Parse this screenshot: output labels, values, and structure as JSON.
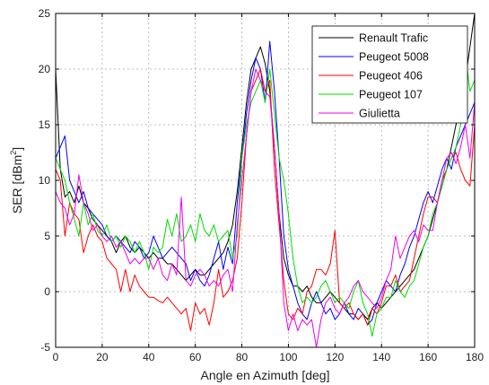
{
  "chart_data": {
    "type": "line",
    "title": "",
    "xlabel": "Angle en Azimuth [deg]",
    "ylabel_main": "SER [dBm",
    "ylabel_sup": "2",
    "ylabel_close": "]",
    "xlim": [
      0,
      180
    ],
    "ylim": [
      -5,
      25
    ],
    "xticks": [
      0,
      20,
      40,
      60,
      80,
      100,
      120,
      140,
      160,
      180
    ],
    "yticks": [
      -5,
      0,
      5,
      10,
      15,
      20,
      25
    ],
    "grid": true,
    "legend_position": "top-right",
    "series": [
      {
        "name": "Renault Trafic",
        "color": "#000000",
        "x": [
          0,
          2,
          4,
          6,
          8,
          10,
          12,
          14,
          16,
          18,
          20,
          22,
          24,
          26,
          28,
          30,
          32,
          34,
          36,
          38,
          40,
          42,
          44,
          46,
          48,
          50,
          52,
          54,
          56,
          58,
          60,
          62,
          64,
          66,
          68,
          70,
          72,
          74,
          76,
          78,
          80,
          82,
          84,
          86,
          88,
          90,
          92,
          94,
          96,
          98,
          100,
          102,
          104,
          106,
          108,
          110,
          112,
          114,
          116,
          118,
          120,
          122,
          124,
          126,
          128,
          130,
          132,
          134,
          136,
          138,
          140,
          142,
          144,
          146,
          148,
          150,
          152,
          154,
          156,
          158,
          160,
          162,
          164,
          166,
          168,
          170,
          172,
          174,
          176,
          178,
          180
        ],
        "values": [
          20,
          11,
          8.5,
          9,
          8,
          9.5,
          8,
          7.5,
          6.5,
          6,
          5.5,
          5,
          4.5,
          3.5,
          4.5,
          5,
          4,
          3.5,
          4,
          3.5,
          3,
          3.5,
          3,
          3,
          2.5,
          2.5,
          2,
          1.5,
          1,
          1.5,
          2,
          1.5,
          1.5,
          2,
          2.5,
          3,
          3.5,
          4.5,
          6,
          9,
          13,
          17,
          20,
          21,
          22,
          20.5,
          18,
          13,
          7,
          3,
          1.5,
          0.5,
          0.5,
          0,
          0.5,
          -0.5,
          -1,
          -1,
          -0.5,
          0,
          -0.5,
          -1,
          -1.5,
          -2,
          -2,
          -2.5,
          -2,
          -2.5,
          -1.5,
          -1,
          -1.5,
          -1,
          -0.5,
          0,
          0.5,
          1,
          1.5,
          2,
          3,
          4,
          5,
          6.5,
          8,
          9.5,
          11,
          13,
          15,
          16.5,
          19,
          22,
          25
        ]
      },
      {
        "name": "Peugeot 5008",
        "color": "#0000ff",
        "x": [
          0,
          2,
          4,
          6,
          8,
          10,
          12,
          14,
          16,
          18,
          20,
          22,
          24,
          26,
          28,
          30,
          32,
          34,
          36,
          38,
          40,
          42,
          44,
          46,
          48,
          50,
          52,
          54,
          56,
          58,
          60,
          62,
          64,
          66,
          68,
          70,
          72,
          74,
          76,
          78,
          80,
          82,
          84,
          86,
          88,
          90,
          92,
          94,
          96,
          98,
          100,
          102,
          104,
          106,
          108,
          110,
          112,
          114,
          116,
          118,
          120,
          122,
          124,
          126,
          128,
          130,
          132,
          134,
          136,
          138,
          140,
          142,
          144,
          146,
          148,
          150,
          152,
          154,
          156,
          158,
          160,
          162,
          164,
          166,
          168,
          170,
          172,
          174,
          176,
          178,
          180
        ],
        "values": [
          12,
          13,
          14,
          10,
          9,
          8,
          9,
          7.5,
          7,
          6.5,
          6,
          5,
          4.5,
          5,
          4.5,
          4,
          3.5,
          4.5,
          4,
          3,
          3.5,
          5,
          4,
          3,
          3.5,
          4,
          3.5,
          3,
          2.5,
          1,
          2,
          1,
          0.5,
          1.5,
          3,
          4.5,
          2,
          4,
          2.5,
          8,
          12,
          16,
          19,
          21,
          20,
          17,
          22.5,
          18,
          12,
          5,
          2,
          0.5,
          -1,
          -2,
          -2.5,
          -1,
          0,
          -1,
          -2,
          -1.5,
          -2.5,
          -2,
          -1,
          -2,
          -2.5,
          -1.5,
          -2,
          -3,
          -2.5,
          -1,
          0,
          1,
          0.5,
          0,
          1.5,
          2.5,
          4,
          5,
          6.5,
          8,
          9,
          8,
          9.5,
          11,
          12,
          11,
          13,
          14,
          15,
          16,
          17
        ]
      },
      {
        "name": "Peugeot 406",
        "color": "#ff0000",
        "x": [
          0,
          2,
          4,
          6,
          8,
          10,
          12,
          14,
          16,
          18,
          20,
          22,
          24,
          26,
          28,
          30,
          32,
          34,
          36,
          38,
          40,
          42,
          44,
          46,
          48,
          50,
          52,
          54,
          56,
          58,
          60,
          62,
          64,
          66,
          68,
          70,
          72,
          74,
          76,
          78,
          80,
          82,
          84,
          86,
          88,
          90,
          92,
          94,
          96,
          98,
          100,
          102,
          104,
          106,
          108,
          110,
          112,
          114,
          116,
          118,
          120,
          122,
          124,
          126,
          128,
          130,
          132,
          134,
          136,
          138,
          140,
          142,
          144,
          146,
          148,
          150,
          152,
          154,
          156,
          158,
          160,
          162,
          164,
          166,
          168,
          170,
          172,
          174,
          176,
          178,
          180
        ],
        "values": [
          11,
          10,
          5,
          8,
          7,
          6.5,
          3.5,
          5,
          6,
          5,
          4.5,
          3,
          2.5,
          2,
          0,
          2,
          0,
          1.5,
          0.5,
          0,
          -0.5,
          -0.5,
          -0.8,
          -1,
          -0.5,
          -1,
          -1.5,
          -2,
          -1.5,
          -3.5,
          -1,
          -2,
          -1.5,
          -3,
          -1,
          2,
          -0.5,
          0,
          1,
          3,
          8,
          14,
          18,
          19,
          20,
          18,
          19,
          11,
          6,
          1,
          -2,
          -2.5,
          -1.5,
          -2,
          0,
          0.5,
          2,
          2,
          1.5,
          2.5,
          5.5,
          -1,
          -1.5,
          -1,
          -2,
          -2.5,
          -2,
          -3,
          -1.5,
          -2,
          -1,
          0.5,
          0.5,
          1.5,
          0,
          0.5,
          1,
          3,
          5,
          7,
          8.5,
          8.5,
          8,
          10,
          11,
          12,
          12.5,
          11,
          10,
          9.5,
          15
        ]
      },
      {
        "name": "Peugeot 107",
        "color": "#00dd00",
        "x": [
          0,
          2,
          4,
          6,
          8,
          10,
          12,
          14,
          16,
          18,
          20,
          22,
          24,
          26,
          28,
          30,
          32,
          34,
          36,
          38,
          40,
          42,
          44,
          46,
          48,
          50,
          52,
          54,
          56,
          58,
          60,
          62,
          64,
          66,
          68,
          70,
          72,
          74,
          76,
          78,
          80,
          82,
          84,
          86,
          88,
          90,
          92,
          94,
          96,
          98,
          100,
          102,
          104,
          106,
          108,
          110,
          112,
          114,
          116,
          118,
          120,
          122,
          124,
          126,
          128,
          130,
          132,
          134,
          136,
          138,
          140,
          142,
          144,
          146,
          148,
          150,
          152,
          154,
          156,
          158,
          160,
          162,
          164,
          166,
          168,
          170,
          172,
          174,
          176,
          178,
          180
        ],
        "values": [
          12,
          11,
          10,
          8,
          6.5,
          5,
          8,
          6,
          7,
          5.5,
          5,
          6,
          4.5,
          5,
          4,
          5,
          4.5,
          3.5,
          4.5,
          3.5,
          2,
          4,
          3.5,
          4,
          6.5,
          5,
          7,
          4.5,
          5,
          6,
          4.5,
          7,
          5.5,
          5,
          6,
          4.5,
          5,
          5.5,
          3,
          5,
          12,
          15,
          17,
          18,
          19,
          17,
          20,
          16,
          12,
          10,
          7,
          3,
          0.5,
          -1,
          -0.5,
          -1,
          -0.5,
          0.5,
          1,
          0,
          -1,
          -0.5,
          -1,
          -1.5,
          0,
          1,
          -1,
          -2,
          -4,
          -2,
          -1.5,
          -0.5,
          -0.5,
          1,
          0,
          -0.5,
          0.5,
          1,
          2.5,
          4,
          5,
          7,
          8,
          9.5,
          11,
          12,
          13,
          15,
          21.5,
          18,
          19
        ]
      },
      {
        "name": "Giulietta",
        "color": "#ee00ee",
        "x": [
          0,
          2,
          4,
          6,
          8,
          10,
          12,
          14,
          16,
          18,
          20,
          22,
          24,
          26,
          28,
          30,
          32,
          34,
          36,
          38,
          40,
          42,
          44,
          46,
          48,
          50,
          52,
          54,
          56,
          58,
          60,
          62,
          64,
          66,
          68,
          70,
          72,
          74,
          76,
          78,
          80,
          82,
          84,
          86,
          88,
          90,
          92,
          94,
          96,
          98,
          100,
          102,
          104,
          106,
          108,
          110,
          112,
          114,
          116,
          118,
          120,
          122,
          124,
          126,
          128,
          130,
          132,
          134,
          136,
          138,
          140,
          142,
          144,
          146,
          148,
          150,
          152,
          154,
          156,
          158,
          160,
          162,
          164,
          166,
          168,
          170,
          172,
          174,
          176,
          178,
          180
        ],
        "values": [
          9,
          8,
          7.5,
          6,
          7,
          10.5,
          8,
          7,
          5.5,
          6,
          5,
          4.5,
          5,
          4,
          4.5,
          3.5,
          2.5,
          3,
          2.5,
          3,
          3,
          2,
          3,
          1.5,
          1,
          2.5,
          1.5,
          8.5,
          1,
          0.5,
          1.5,
          2,
          1.5,
          0.5,
          1,
          0.5,
          1.5,
          2,
          0,
          6,
          10,
          14,
          18,
          20,
          19,
          18,
          17.5,
          13,
          7,
          -1,
          -3.5,
          -2,
          -3.5,
          -2.5,
          -3,
          -2.5,
          -5,
          -2.5,
          -1,
          -0.5,
          -1.5,
          -2,
          -1,
          -0.5,
          0.5,
          1,
          0,
          -0.5,
          -1,
          -1.5,
          -0.5,
          1,
          2,
          5,
          3,
          4,
          5,
          5.5,
          4.5,
          6,
          5.5,
          5.5,
          8,
          10,
          12,
          12.5,
          11.5,
          13,
          15,
          12,
          17
        ]
      }
    ]
  }
}
